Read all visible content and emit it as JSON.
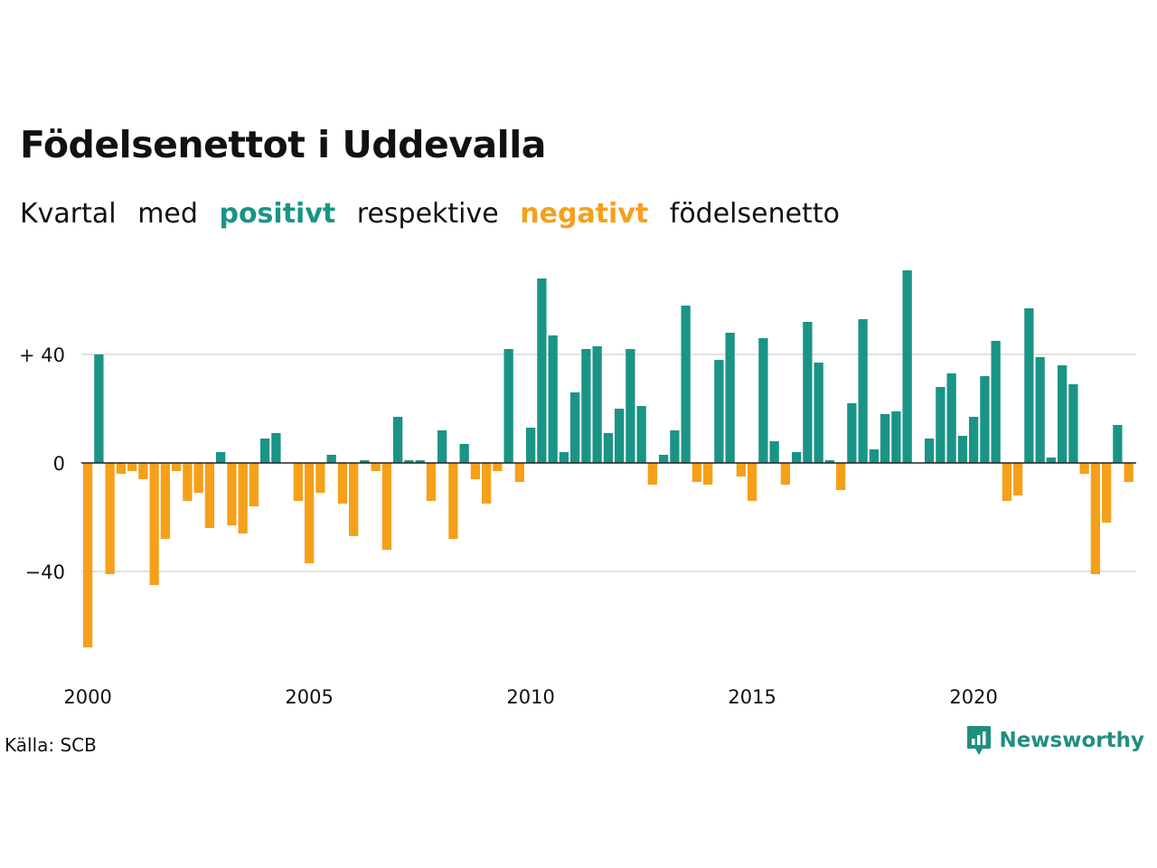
{
  "title": "Födelsenettot i Uddevalla",
  "subtitle": {
    "part1": "Kvartal",
    "part2": "med",
    "positive": "positivt",
    "part3": "respektive",
    "negative": "negativt",
    "part4": "födelsenetto"
  },
  "source": "Källa: SCB",
  "brand": "Newsworthy",
  "colors": {
    "positive": "#1a9486",
    "negative": "#f5a01a",
    "grid": "#e2e2e2",
    "zero": "#222222"
  },
  "chart_data": {
    "type": "bar",
    "x_start": "2000 Q1",
    "frequency": "quarterly",
    "values": [
      -68,
      40,
      -41,
      -4,
      -3,
      -6,
      -45,
      -28,
      -3,
      -14,
      -11,
      -24,
      4,
      -23,
      -26,
      -16,
      9,
      11,
      0,
      -14,
      -37,
      -11,
      3,
      -15,
      -27,
      1,
      -3,
      -32,
      17,
      1,
      1,
      -14,
      12,
      -28,
      7,
      -6,
      -15,
      -3,
      42,
      -7,
      13,
      68,
      47,
      4,
      26,
      42,
      43,
      11,
      20,
      42,
      21,
      -8,
      3,
      12,
      58,
      -7,
      -8,
      38,
      48,
      -5,
      -14,
      46,
      8,
      -8,
      4,
      52,
      37,
      1,
      -10,
      22,
      53,
      5,
      18,
      19,
      71,
      0,
      9,
      28,
      33,
      10,
      17,
      32,
      45,
      -14,
      -12,
      57,
      39,
      2,
      36,
      29,
      -4,
      -41,
      -22,
      14,
      -7
    ],
    "x_ticks": [
      "2000",
      "2005",
      "2010",
      "2015",
      "2020"
    ],
    "y_ticks": [
      {
        "value": 40,
        "label": "+ 40"
      },
      {
        "value": 0,
        "label": "0"
      },
      {
        "value": -40,
        "label": "−40"
      }
    ],
    "ylim": [
      -75,
      75
    ],
    "grid": true,
    "legend": "in subtitle"
  }
}
